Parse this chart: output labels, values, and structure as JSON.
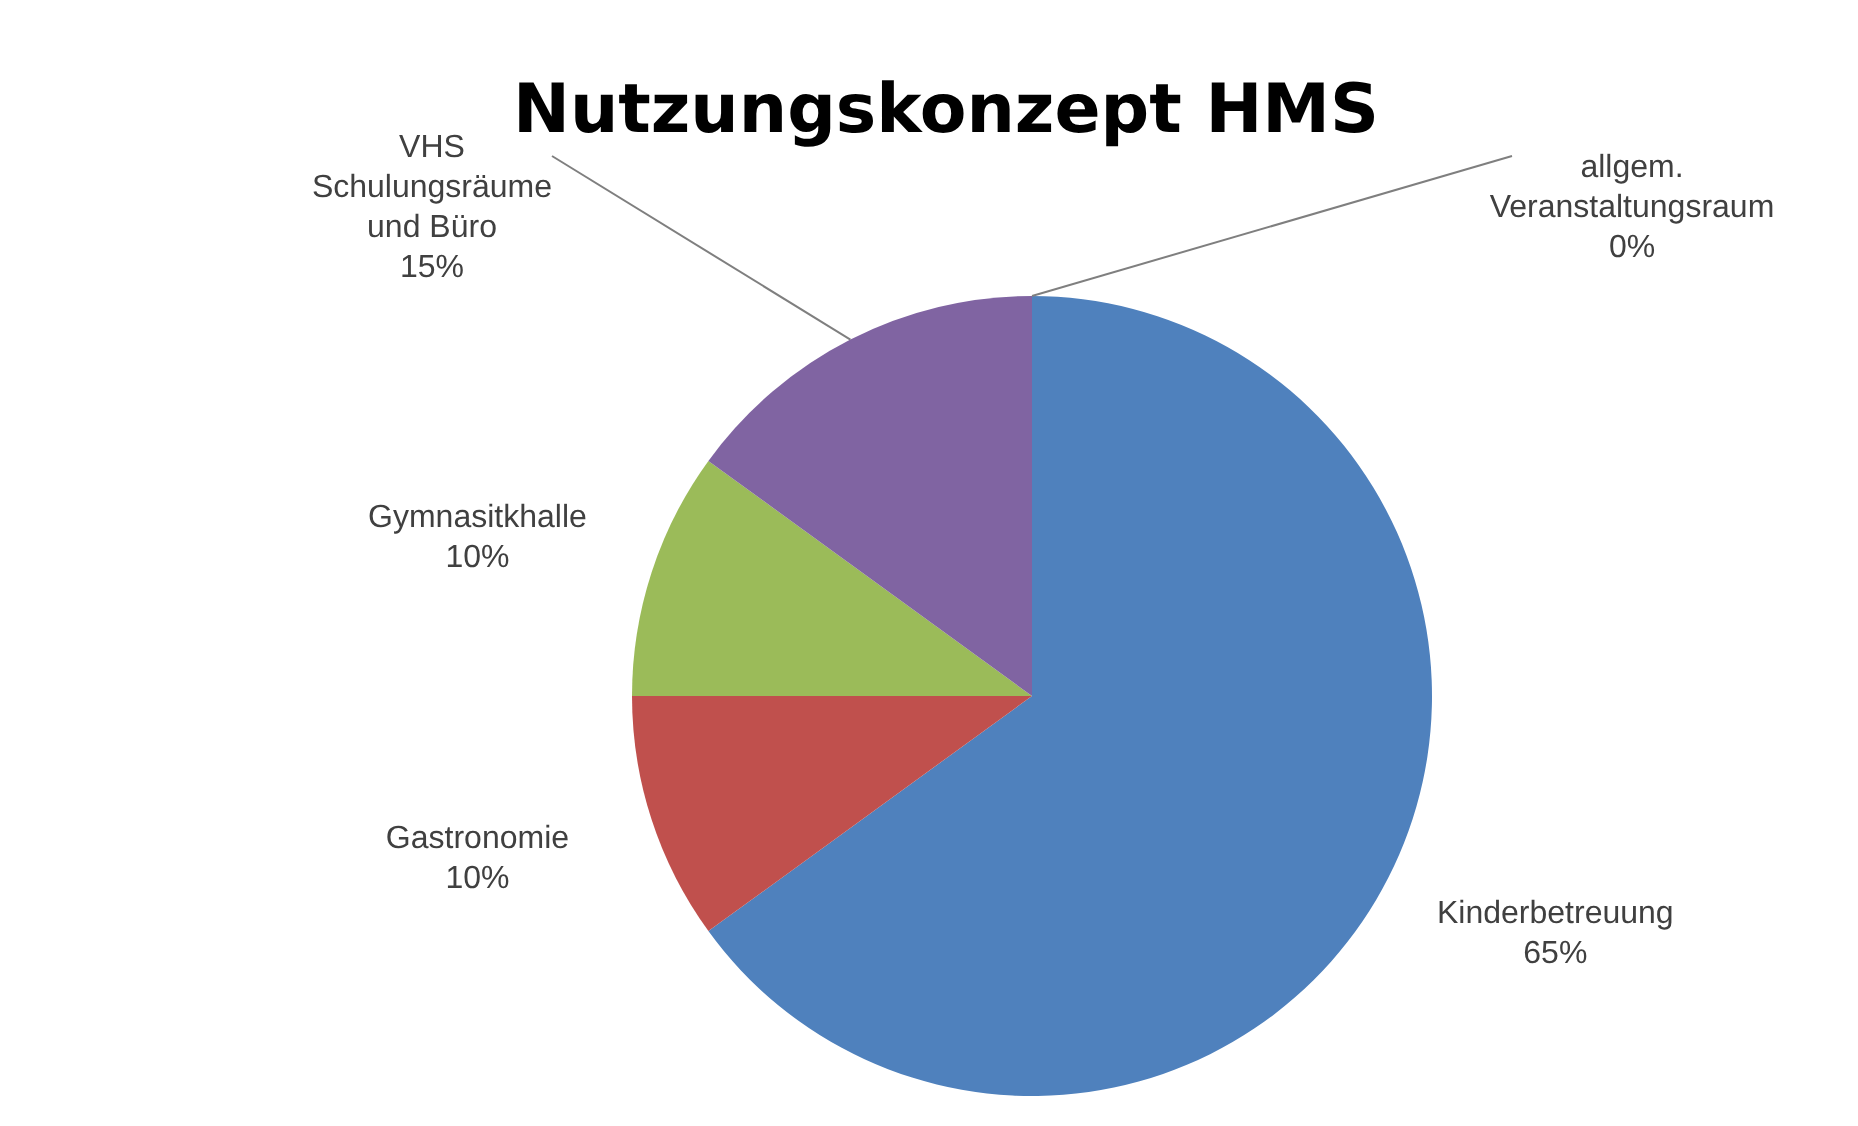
{
  "chart_data": {
    "type": "pie",
    "title": "Nutzungskonzept HMS",
    "categories": [
      "Kinderbetreuung",
      "Gastronomie",
      "Gymnasitkhalle",
      "VHS Schulungsräume und Büro",
      "allgem. Veranstaltungsraum"
    ],
    "values": [
      65,
      10,
      10,
      15,
      0
    ],
    "value_labels": [
      "65%",
      "10%",
      "10%",
      "15%",
      "0%"
    ],
    "colors": [
      "#4f81bd",
      "#c0504d",
      "#9bbb59",
      "#8064a2",
      "#4bacc6"
    ],
    "legend": false
  }
}
